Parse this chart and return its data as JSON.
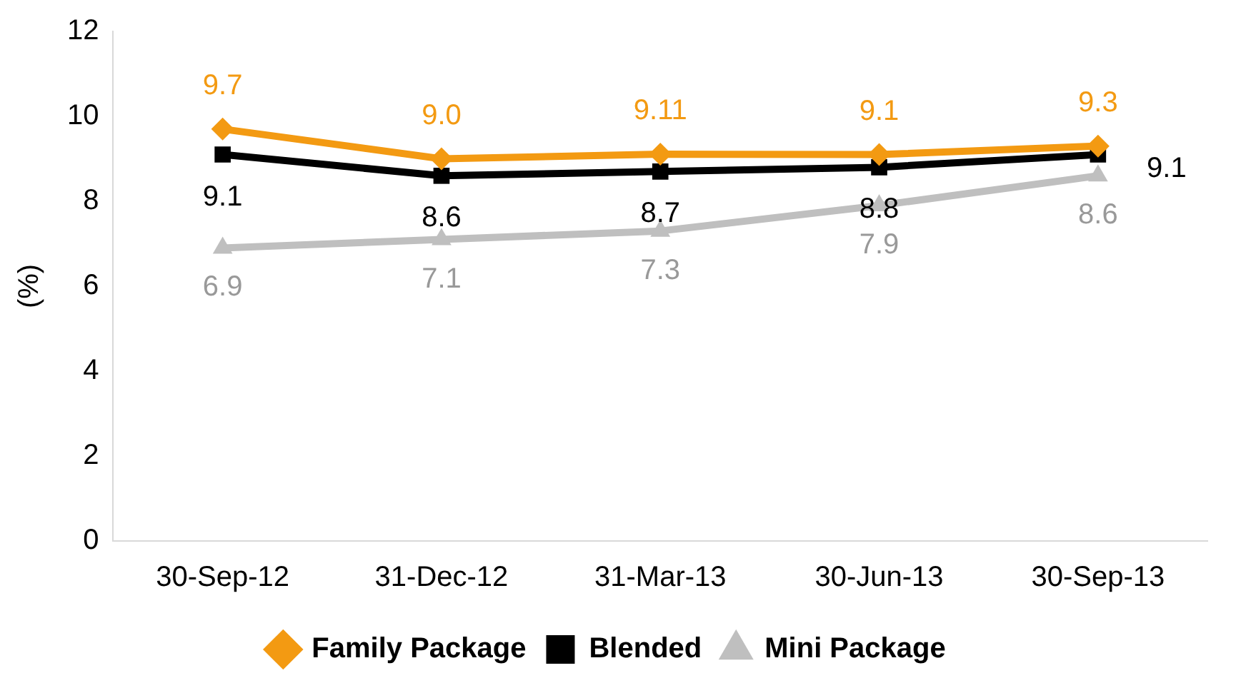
{
  "chart_data": {
    "type": "line",
    "ylabel": "(%)",
    "categories": [
      "30-Sep-12",
      "31-Dec-12",
      "31-Mar-13",
      "30-Jun-13",
      "30-Sep-13"
    ],
    "series": [
      {
        "name": "Family Package",
        "color": "#f39a12",
        "marker": "diamond",
        "values": [
          9.7,
          9.0,
          9.11,
          9.1,
          9.3
        ],
        "value_labels": [
          "9.7",
          "9.0",
          "9.11",
          "9.1",
          "9.3"
        ]
      },
      {
        "name": "Blended",
        "color": "#000000",
        "marker": "square",
        "values": [
          9.1,
          8.6,
          8.7,
          8.8,
          9.1
        ],
        "value_labels": [
          "9.1",
          "8.6",
          "8.7",
          "8.8",
          "9.1"
        ]
      },
      {
        "name": "Mini Package",
        "color": "#bfbfbf",
        "marker": "triangle",
        "values": [
          6.9,
          7.1,
          7.3,
          7.9,
          8.6
        ],
        "value_labels": [
          "6.9",
          "7.1",
          "7.3",
          "7.9",
          "8.6"
        ]
      }
    ],
    "ylim": [
      0,
      12
    ],
    "yticks": [
      0,
      2,
      4,
      6,
      8,
      10,
      12
    ],
    "grid": false,
    "legend": "bottom",
    "line_style": "solid"
  }
}
